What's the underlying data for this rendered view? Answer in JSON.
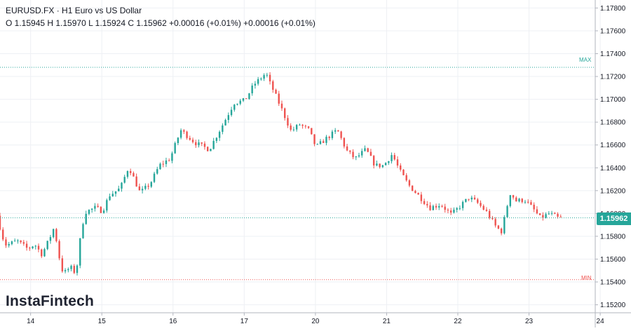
{
  "legend": {
    "symbol": "EURUSD.FX",
    "separator": "·",
    "timeframe": "H1",
    "description": "Euro vs US Dollar",
    "ohlc_text": "O 1.15945 H 1.15970 L 1.15924 C 1.15962 +0.00016 (+0.01%) +0.00016 (+0.01%)"
  },
  "brand": "InstaFintech",
  "current_price": "1.15962",
  "max_label": "MAX",
  "min_label": "MIN",
  "colors": {
    "up": "#26a69a",
    "down": "#ef5350",
    "grid": "#eef0f4",
    "axis_text": "#131722",
    "price_tag": "#26a69a"
  },
  "chart_data": {
    "type": "candlestick",
    "symbol": "EURUSD.FX",
    "interval": "H1",
    "y_ticks": [
      "1.17800",
      "1.17600",
      "1.17400",
      "1.17200",
      "1.17000",
      "1.16800",
      "1.16600",
      "1.16400",
      "1.16200",
      "1.16000",
      "1.15800",
      "1.15600",
      "1.15400",
      "1.15200"
    ],
    "ylim": [
      1.1513,
      1.1787
    ],
    "x_ticks": [
      "14",
      "15",
      "16",
      "17",
      "20",
      "21",
      "22",
      "23",
      "24"
    ],
    "x_ticks_day_index": [
      0,
      1,
      2,
      3,
      4,
      5,
      6,
      7,
      8
    ],
    "x_range_day_index": [
      -0.43,
      7.93
    ],
    "max_line": 1.1728,
    "min_line": 1.1542,
    "current_price": 1.15962,
    "grid": true,
    "price_path": [
      [
        -0.43,
        1.1598
      ],
      [
        -0.35,
        1.1579
      ],
      [
        -0.3,
        1.1572
      ],
      [
        -0.15,
        1.1576
      ],
      [
        0,
        1.1569
      ],
      [
        0.1,
        1.1573
      ],
      [
        0.2,
        1.1564
      ],
      [
        0.3,
        1.1577
      ],
      [
        0.38,
        1.1589
      ],
      [
        0.42,
        1.1568
      ],
      [
        0.5,
        1.1547
      ],
      [
        0.6,
        1.1553
      ],
      [
        0.68,
        1.1547
      ],
      [
        0.73,
        1.1574
      ],
      [
        0.8,
        1.1601
      ],
      [
        0.95,
        1.1605
      ],
      [
        1.05,
        1.1602
      ],
      [
        1.15,
        1.1616
      ],
      [
        1.3,
        1.1622
      ],
      [
        1.42,
        1.1641
      ],
      [
        1.58,
        1.1618
      ],
      [
        1.72,
        1.1626
      ],
      [
        1.85,
        1.1642
      ],
      [
        2.0,
        1.1648
      ],
      [
        2.15,
        1.1673
      ],
      [
        2.35,
        1.1662
      ],
      [
        2.55,
        1.1656
      ],
      [
        2.75,
        1.1679
      ],
      [
        2.9,
        1.1697
      ],
      [
        3.05,
        1.1699
      ],
      [
        3.18,
        1.1713
      ],
      [
        3.35,
        1.1723
      ],
      [
        3.38,
        1.1717
      ],
      [
        3.45,
        1.1708
      ],
      [
        3.57,
        1.1691
      ],
      [
        3.7,
        1.1672
      ],
      [
        3.82,
        1.1678
      ],
      [
        3.95,
        1.1673
      ],
      [
        4.05,
        1.1658
      ],
      [
        4.2,
        1.1666
      ],
      [
        4.35,
        1.1673
      ],
      [
        4.48,
        1.1655
      ],
      [
        4.6,
        1.1648
      ],
      [
        4.75,
        1.1656
      ],
      [
        4.88,
        1.1642
      ],
      [
        5.0,
        1.1642
      ],
      [
        5.12,
        1.1652
      ],
      [
        5.22,
        1.1638
      ],
      [
        5.35,
        1.1625
      ],
      [
        5.5,
        1.1615
      ],
      [
        5.65,
        1.1605
      ],
      [
        5.8,
        1.1608
      ],
      [
        5.95,
        1.1599
      ],
      [
        6.05,
        1.1605
      ],
      [
        6.2,
        1.1614
      ],
      [
        6.32,
        1.1609
      ],
      [
        6.45,
        1.1601
      ],
      [
        6.58,
        1.1588
      ],
      [
        6.66,
        1.1584
      ],
      [
        6.72,
        1.1603
      ],
      [
        6.78,
        1.1618
      ],
      [
        6.86,
        1.1611
      ],
      [
        6.98,
        1.1612
      ],
      [
        7.1,
        1.1604
      ],
      [
        7.2,
        1.1596
      ],
      [
        7.33,
        1.16
      ],
      [
        7.45,
        1.1596
      ]
    ]
  }
}
